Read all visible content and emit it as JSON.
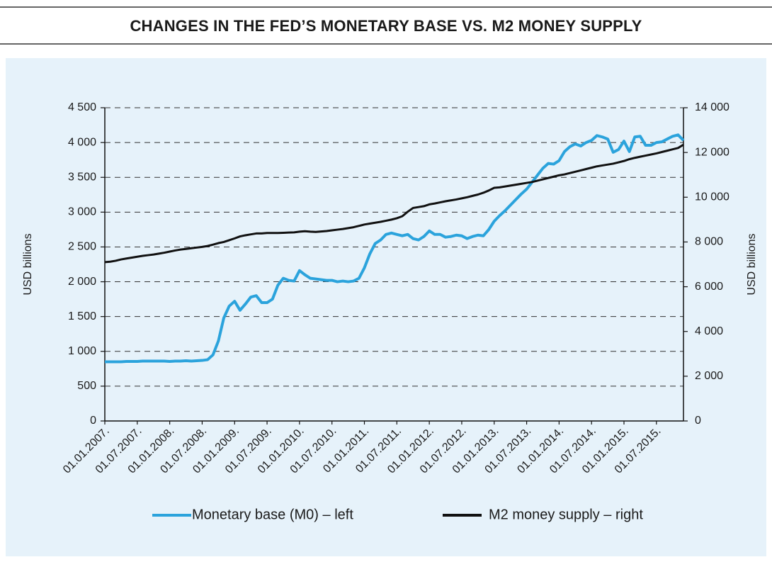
{
  "chart_data": {
    "type": "line",
    "title": "CHANGES IN THE FED’S MONETARY BASE VS. M2 MONEY SUPPLY",
    "y_label": "USD billions",
    "y2_label": "USD billions",
    "categories": [
      "01.01.2007.",
      null,
      null,
      null,
      null,
      null,
      "01.07.2007.",
      null,
      null,
      null,
      null,
      null,
      "01.01.2008.",
      null,
      null,
      null,
      null,
      null,
      "01.07.2008.",
      null,
      null,
      null,
      null,
      null,
      "01.01.2009.",
      null,
      null,
      null,
      null,
      null,
      "01.07.2009.",
      null,
      null,
      null,
      null,
      null,
      "01.01.2010.",
      null,
      null,
      null,
      null,
      null,
      "01.07.2010.",
      null,
      null,
      null,
      null,
      null,
      "01.01.2011.",
      null,
      null,
      null,
      null,
      null,
      "01.07.2011.",
      null,
      null,
      null,
      null,
      null,
      "01.01.2012.",
      null,
      null,
      null,
      null,
      null,
      "01.07.2012.",
      null,
      null,
      null,
      null,
      null,
      "01.01.2013.",
      null,
      null,
      null,
      null,
      null,
      "01.07.2013.",
      null,
      null,
      null,
      null,
      null,
      "01.01.2014.",
      null,
      null,
      null,
      null,
      null,
      "01.07.2014.",
      null,
      null,
      null,
      null,
      null,
      "01.01.2015.",
      null,
      null,
      null,
      null,
      null,
      "01.07.2015.",
      null,
      null,
      null,
      null,
      null
    ],
    "series": [
      {
        "name": "Monetary base (M0) – left",
        "color": "#2ba3dc",
        "axis": "y",
        "values": [
          850,
          850,
          850,
          850,
          855,
          855,
          855,
          860,
          860,
          860,
          860,
          860,
          855,
          860,
          860,
          865,
          860,
          865,
          870,
          880,
          950,
          1150,
          1480,
          1650,
          1720,
          1590,
          1680,
          1780,
          1800,
          1700,
          1700,
          1750,
          1950,
          2050,
          2020,
          2010,
          2160,
          2100,
          2050,
          2040,
          2030,
          2020,
          2020,
          2000,
          2010,
          2000,
          2010,
          2050,
          2200,
          2400,
          2550,
          2600,
          2680,
          2700,
          2680,
          2660,
          2680,
          2620,
          2600,
          2650,
          2730,
          2680,
          2680,
          2640,
          2650,
          2670,
          2660,
          2620,
          2650,
          2670,
          2660,
          2750,
          2870,
          2950,
          3020,
          3100,
          3180,
          3260,
          3330,
          3430,
          3530,
          3630,
          3700,
          3690,
          3740,
          3870,
          3940,
          3980,
          3950,
          4000,
          4030,
          4100,
          4080,
          4050,
          3860,
          3900,
          4020,
          3870,
          4080,
          4090,
          3960,
          3960,
          4000,
          4010,
          4050,
          4090,
          4110,
          4030
        ]
      },
      {
        "name": "M2 money supply – right",
        "color": "#111111",
        "axis": "y2",
        "values": [
          7100,
          7120,
          7160,
          7220,
          7260,
          7300,
          7340,
          7380,
          7410,
          7440,
          7480,
          7520,
          7570,
          7620,
          7660,
          7690,
          7720,
          7750,
          7780,
          7820,
          7880,
          7950,
          8000,
          8080,
          8160,
          8250,
          8300,
          8340,
          8380,
          8380,
          8400,
          8400,
          8400,
          8410,
          8420,
          8430,
          8460,
          8480,
          8460,
          8450,
          8470,
          8490,
          8520,
          8550,
          8580,
          8620,
          8660,
          8720,
          8780,
          8820,
          8860,
          8900,
          8950,
          9000,
          9060,
          9150,
          9350,
          9520,
          9560,
          9600,
          9680,
          9720,
          9770,
          9820,
          9860,
          9900,
          9950,
          10000,
          10060,
          10120,
          10200,
          10300,
          10420,
          10440,
          10480,
          10520,
          10560,
          10600,
          10640,
          10680,
          10740,
          10800,
          10860,
          10920,
          10980,
          11020,
          11080,
          11140,
          11200,
          11260,
          11320,
          11380,
          11420,
          11460,
          11500,
          11560,
          11620,
          11700,
          11760,
          11810,
          11860,
          11910,
          11960,
          12020,
          12080,
          12140,
          12200,
          12350
        ]
      }
    ],
    "ylim": [
      0,
      4500
    ],
    "yticks": [
      0,
      500,
      {
        "value": 1000,
        "label": "1 000"
      },
      {
        "value": 1500,
        "label": "1 500"
      },
      {
        "value": 2000,
        "label": "2 000"
      },
      {
        "value": 2500,
        "label": "2 500"
      },
      {
        "value": 3000,
        "label": "3 000"
      },
      {
        "value": 3500,
        "label": "3 500"
      },
      {
        "value": 4000,
        "label": "4 000"
      },
      {
        "value": 4500,
        "label": "4 500"
      }
    ],
    "y2lim": [
      0,
      14000
    ],
    "y2ticks": [
      0,
      {
        "value": 2000,
        "label": "2 000"
      },
      {
        "value": 4000,
        "label": "4 000"
      },
      {
        "value": 6000,
        "label": "6 000"
      },
      {
        "value": 8000,
        "label": "8 000"
      },
      {
        "value": 10000,
        "label": "10 000"
      },
      {
        "value": 12000,
        "label": "12 000"
      },
      {
        "value": 14000,
        "label": "14 000"
      }
    ],
    "grid": true,
    "legend": "bottom"
  }
}
